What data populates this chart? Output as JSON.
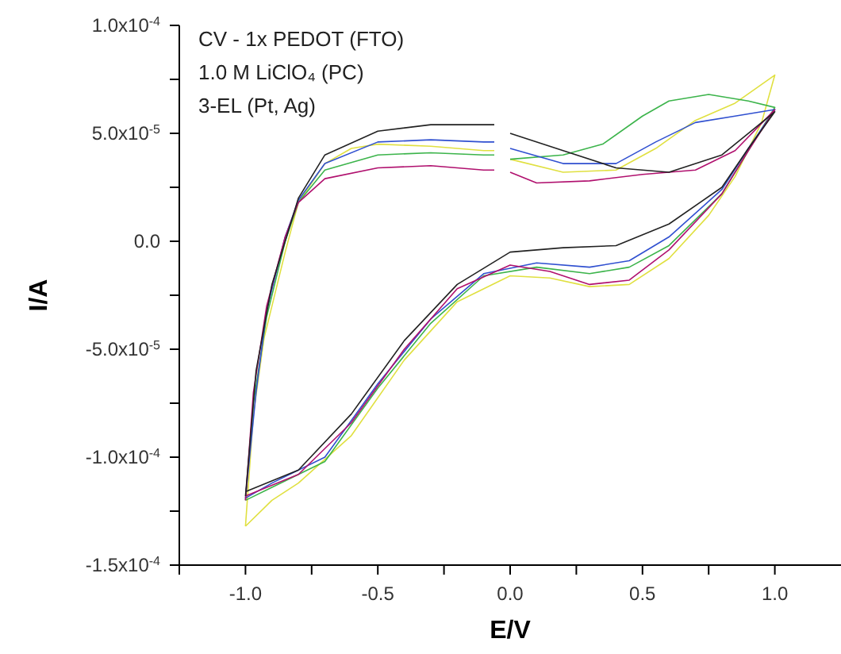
{
  "chart_data": {
    "type": "line",
    "xlabel": "E/V",
    "ylabel": "I/A",
    "annotations": [
      "CV - 1x PEDOT (FTO)",
      "1.0 M LiClO₄ (PC)",
      "3-EL (Pt, Ag)"
    ],
    "xlim": [
      -1.25,
      1.25
    ],
    "xticks": [
      {
        "value": -1.25,
        "label": null
      },
      "-1.0",
      {
        "value": -0.75,
        "label": null
      },
      {
        "value": -0.5,
        "label": "-0.5"
      },
      {
        "value": -0.25,
        "label": null
      },
      {
        "value": 0,
        "label": "0.0"
      },
      {
        "value": 0.25,
        "label": null
      },
      {
        "value": 0.5,
        "label": "0.5"
      },
      {
        "value": 0.75,
        "label": null
      },
      {
        "value": 1,
        "label": "1.0"
      }
    ],
    "ylim": [
      -0.00015,
      0.0001
    ],
    "yticks": [
      {
        "value": -0.00015,
        "label": "-1.5x10$^{-4}$"
      },
      {
        "value": -0.000125,
        "label": null
      },
      {
        "value": -0.0001,
        "label": "-1.0x10$^{-4}$"
      },
      {
        "value": -7.5e-05,
        "label": null
      },
      {
        "value": -5e-05,
        "label": "-5.0x10$^{-5}$"
      },
      {
        "value": -2.5e-05,
        "label": null
      },
      {
        "value": 0,
        "label": "0.0"
      },
      {
        "value": 2.5e-05,
        "label": null
      },
      {
        "value": 5e-05,
        "label": "5.0x10$^{-5}$"
      },
      {
        "value": 7.5e-05,
        "label": null
      },
      {
        "value": 0.0001,
        "label": "1.0x10$^{-4}$"
      }
    ],
    "series": [
      {
        "color": "#e0e040",
        "x": [
          -1.0,
          -0.97,
          -0.93,
          -0.85,
          -0.8,
          -0.7,
          -0.6,
          -0.5,
          -0.3,
          -0.1,
          -0.06,
          -0.03,
          0.0,
          0.2,
          0.4,
          0.55,
          0.7,
          0.85,
          1.0,
          0.95,
          0.85,
          0.75,
          0.6,
          0.45,
          0.3,
          0.15,
          0.0,
          -0.2,
          -0.4,
          -0.6,
          -0.8,
          -0.9,
          -1.0
        ],
        "values": [
          -0.000132,
          -8e-05,
          -4.5e-05,
          -5e-06,
          1.8e-05,
          3.6e-05,
          4.3e-05,
          4.5e-05,
          4.4e-05,
          4.2e-05,
          4.2e-05,
          null,
          3.8e-05,
          3.2e-05,
          3.3e-05,
          4.3e-05,
          5.6e-05,
          6.4e-05,
          7.7e-05,
          5.5e-05,
          3e-05,
          1.2e-05,
          -8e-06,
          -2e-05,
          -2.1e-05,
          -1.7e-05,
          -1.6e-05,
          -2.8e-05,
          -5.5e-05,
          -9e-05,
          -0.000112,
          -0.00012,
          -0.000132
        ]
      },
      {
        "color": "#3cb44b",
        "x": [
          -1.0,
          -0.97,
          -0.92,
          -0.85,
          -0.8,
          -0.7,
          -0.5,
          -0.3,
          -0.1,
          -0.06,
          -0.03,
          0.0,
          0.2,
          0.35,
          0.5,
          0.6,
          0.75,
          0.9,
          1.0,
          0.9,
          0.8,
          0.6,
          0.45,
          0.3,
          0.1,
          -0.1,
          -0.3,
          -0.5,
          -0.7,
          -0.9,
          -1.0
        ],
        "values": [
          -0.00012,
          -7.5e-05,
          -3.5e-05,
          0.0,
          1.8e-05,
          3.3e-05,
          4e-05,
          4.1e-05,
          4e-05,
          4e-05,
          null,
          3.8e-05,
          4e-05,
          4.5e-05,
          5.8e-05,
          6.5e-05,
          6.8e-05,
          6.5e-05,
          6.2e-05,
          4.2e-05,
          2.2e-05,
          -2e-06,
          -1.2e-05,
          -1.5e-05,
          -1.2e-05,
          -1.6e-05,
          -3.8e-05,
          -6.8e-05,
          -0.000102,
          -0.000114,
          -0.00012
        ]
      },
      {
        "color": "#3050d0",
        "x": [
          -1.0,
          -0.96,
          -0.92,
          -0.85,
          -0.8,
          -0.7,
          -0.5,
          -0.3,
          -0.1,
          -0.06,
          -0.03,
          0.0,
          0.2,
          0.4,
          0.55,
          0.7,
          0.85,
          1.0,
          0.9,
          0.8,
          0.6,
          0.45,
          0.3,
          0.1,
          -0.1,
          -0.3,
          -0.5,
          -0.7,
          -0.9,
          -1.0
        ],
        "values": [
          -0.000119,
          -7e-05,
          -3.2e-05,
          2e-06,
          1.9e-05,
          3.6e-05,
          4.6e-05,
          4.7e-05,
          4.6e-05,
          4.6e-05,
          null,
          4.3e-05,
          3.6e-05,
          3.6e-05,
          4.6e-05,
          5.5e-05,
          5.8e-05,
          6.1e-05,
          4.3e-05,
          2.4e-05,
          2e-06,
          -9e-06,
          -1.2e-05,
          -1e-05,
          -1.5e-05,
          -3.6e-05,
          -6.6e-05,
          -0.0001,
          -0.000112,
          -0.000119
        ]
      },
      {
        "color": "#b0106e",
        "x": [
          -1.0,
          -0.97,
          -0.92,
          -0.85,
          -0.8,
          -0.7,
          -0.5,
          -0.3,
          -0.1,
          -0.06,
          -0.03,
          0.0,
          0.1,
          0.3,
          0.5,
          0.7,
          0.85,
          1.0,
          0.9,
          0.8,
          0.6,
          0.45,
          0.3,
          0.15,
          0.0,
          -0.2,
          -0.4,
          -0.6,
          -0.8,
          -1.0
        ],
        "values": [
          -0.00012,
          -7e-05,
          -3e-05,
          2e-06,
          1.8e-05,
          2.9e-05,
          3.4e-05,
          3.5e-05,
          3.3e-05,
          3.3e-05,
          null,
          3.2e-05,
          2.7e-05,
          2.8e-05,
          3.1e-05,
          3.3e-05,
          4.2e-05,
          6.1e-05,
          4.2e-05,
          2.2e-05,
          -4e-06,
          -1.8e-05,
          -2e-05,
          -1.4e-05,
          -1.1e-05,
          -2.2e-05,
          -5e-05,
          -8.4e-05,
          -0.000108,
          -0.000118
        ]
      },
      {
        "color": "#222222",
        "x": [
          -1.0,
          -0.96,
          -0.9,
          -0.8,
          -0.7,
          -0.5,
          -0.3,
          -0.1,
          -0.06,
          -0.03,
          0.0,
          0.2,
          0.4,
          0.6,
          0.8,
          1.0,
          0.9,
          0.8,
          0.6,
          0.4,
          0.2,
          0.0,
          -0.2,
          -0.4,
          -0.6,
          -0.8,
          -1.0
        ],
        "values": [
          -0.000118,
          -6e-05,
          -2e-05,
          2e-05,
          4e-05,
          5.1e-05,
          5.4e-05,
          5.4e-05,
          5.4e-05,
          null,
          5e-05,
          4.2e-05,
          3.4e-05,
          3.2e-05,
          4e-05,
          6e-05,
          4.3e-05,
          2.5e-05,
          8e-06,
          -2e-06,
          -3e-06,
          -5e-06,
          -2e-05,
          -4.6e-05,
          -8e-05,
          -0.000106,
          -0.000116
        ]
      }
    ]
  }
}
